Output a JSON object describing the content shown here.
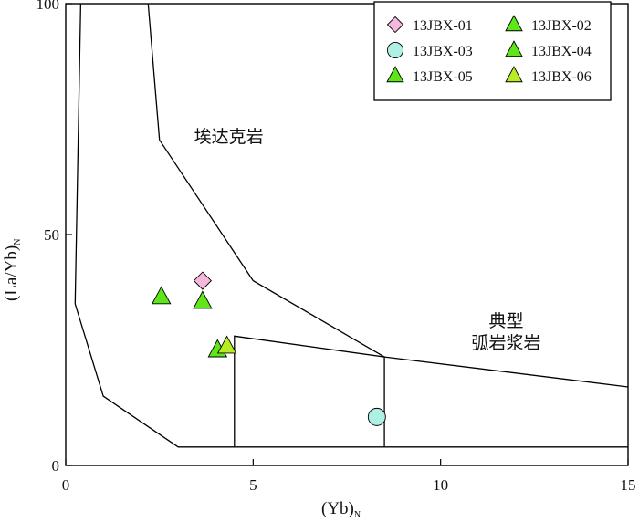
{
  "chart_data": {
    "type": "scatter",
    "title": "",
    "xlabel": {
      "main": "(Yb)",
      "sub": "N"
    },
    "ylabel": {
      "main": "(La/Yb)",
      "sub": "N"
    },
    "xlim": [
      0,
      15
    ],
    "ylim": [
      0,
      100
    ],
    "xticks": [
      0,
      5,
      10,
      15
    ],
    "yticks": [
      0,
      50,
      100
    ],
    "xtick_labels": [
      "0",
      "5",
      "10",
      "15"
    ],
    "ytick_labels": [
      "0",
      "50",
      "100"
    ],
    "grid": false,
    "legend_position": "top-right",
    "legend_columns": 2,
    "series": [
      {
        "name": "13JBX-01",
        "marker": "diamond",
        "color": "#f5b8dc",
        "x": [
          3.65
        ],
        "y": [
          40
        ]
      },
      {
        "name": "13JBX-02",
        "marker": "triangle",
        "color": "#5fe619",
        "x": [
          3.65
        ],
        "y": [
          35.5
        ]
      },
      {
        "name": "13JBX-03",
        "marker": "circle",
        "color": "#aef0e4",
        "x": [
          8.3
        ],
        "y": [
          10.5
        ]
      },
      {
        "name": "13JBX-04",
        "marker": "triangle",
        "color": "#5fe619",
        "x": [
          2.55
        ],
        "y": [
          36.5
        ]
      },
      {
        "name": "13JBX-05",
        "marker": "triangle",
        "color": "#5fe619",
        "x": [
          4.05
        ],
        "y": [
          25
        ]
      },
      {
        "name": "13JBX-06",
        "marker": "triangle",
        "color": "#b8ec24",
        "x": [
          4.3
        ],
        "y": [
          25.8
        ]
      }
    ],
    "fields": [
      {
        "name": "adakite",
        "lines": [
          [
            [
              0.4,
              100
            ],
            [
              0.25,
              35
            ],
            [
              1.0,
              15
            ],
            [
              3.0,
              4
            ],
            [
              15,
              4
            ]
          ],
          [
            [
              2.2,
              100
            ],
            [
              2.5,
              70.5
            ],
            [
              5.0,
              40
            ],
            [
              8.5,
              23.5
            ]
          ]
        ]
      },
      {
        "name": "arc",
        "lines": [
          [
            [
              4.5,
              4
            ],
            [
              4.5,
              28
            ],
            [
              8.5,
              23.5
            ],
            [
              8.5,
              4
            ]
          ],
          [
            [
              8.5,
              23.5
            ],
            [
              15,
              17
            ]
          ]
        ]
      }
    ],
    "region_labels": [
      {
        "id": "adakite",
        "lines": [
          "埃达克岩"
        ],
        "x": 4.35,
        "y": 70
      },
      {
        "id": "arc",
        "lines": [
          "典型",
          "弧岩浆岩"
        ],
        "x": 11.75,
        "y": 30
      }
    ]
  }
}
